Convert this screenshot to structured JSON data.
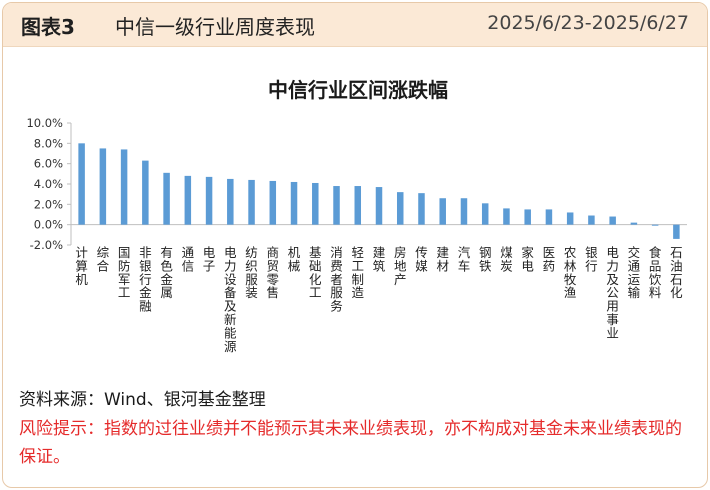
{
  "header": {
    "figure_no": "图表3",
    "title": "中信一级行业周度表现",
    "date_range": "2025/6/23-2025/6/27"
  },
  "footer": {
    "source": "资料来源：Wind、银河基金整理",
    "risk": "风险提示：指数的过往业绩并不能预示其未来业绩表现，亦不构成对基金未来业绩表现的保证。"
  },
  "colors": {
    "bar": "#5b9bd5",
    "header_bg": "#fbe9d6",
    "risk_text": "#e52b2b"
  },
  "chart_data": {
    "type": "bar",
    "title": "中信行业区间涨跌幅",
    "categories": [
      "计算机",
      "综合",
      "国防军工",
      "非银行金融",
      "有色金属",
      "通信",
      "电子",
      "电力设备及新能源",
      "纺织服装",
      "商贸零售",
      "机械",
      "基础化工",
      "消费者服务",
      "轻工制造",
      "建筑",
      "房地产",
      "传媒",
      "建材",
      "汽车",
      "钢铁",
      "煤炭",
      "家电",
      "医药",
      "农林牧渔",
      "银行",
      "电力及公用事业",
      "交通运输",
      "食品饮料",
      "石油石化"
    ],
    "values": [
      8.0,
      7.5,
      7.4,
      6.3,
      5.1,
      4.8,
      4.7,
      4.5,
      4.4,
      4.3,
      4.2,
      4.1,
      3.8,
      3.8,
      3.7,
      3.2,
      3.1,
      2.6,
      2.6,
      2.1,
      1.6,
      1.5,
      1.5,
      1.2,
      0.9,
      0.8,
      0.2,
      -0.1,
      -1.4
    ],
    "ylim": [
      -2,
      10
    ],
    "yticks": [
      "10.0%",
      "8.0%",
      "6.0%",
      "4.0%",
      "2.0%",
      "0.0%",
      "-2.0%"
    ],
    "ytick_values": [
      10,
      8,
      6,
      4,
      2,
      0,
      -2
    ]
  }
}
